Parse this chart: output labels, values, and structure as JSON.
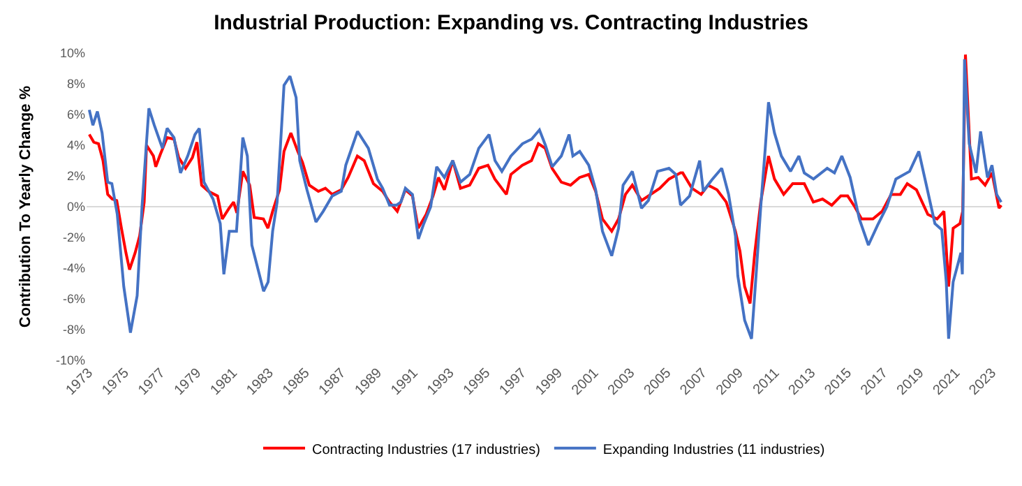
{
  "chart_data": {
    "type": "line",
    "title": "Industrial Production: Expanding vs. Contracting Industries",
    "ylabel": "Contribution To Yearly Change %",
    "xlim": [
      1972.9,
      2023.6
    ],
    "xticks": [
      1973,
      1975,
      1977,
      1979,
      1981,
      1983,
      1985,
      1987,
      1989,
      1991,
      1993,
      1995,
      1997,
      1999,
      2001,
      2003,
      2005,
      2007,
      2009,
      2011,
      2013,
      2015,
      2017,
      2019,
      2021,
      2023
    ],
    "ylim": [
      -10,
      10
    ],
    "yticks": [
      {
        "value": -10,
        "label": "-10%"
      },
      {
        "value": -8,
        "label": "-8%"
      },
      {
        "value": -6,
        "label": "-6%"
      },
      {
        "value": -4,
        "label": "-4%"
      },
      {
        "value": -2,
        "label": "-2%"
      },
      {
        "value": 0,
        "label": "0%"
      },
      {
        "value": 2,
        "label": "2%"
      },
      {
        "value": 4,
        "label": "4%"
      },
      {
        "value": 6,
        "label": "6%"
      },
      {
        "value": 8,
        "label": "8%"
      },
      {
        "value": 10,
        "label": "10%"
      }
    ],
    "grid": false,
    "ref_lines": [
      {
        "axis": "y",
        "value": 0,
        "color": "#d9d9d9"
      }
    ],
    "legend": "bottom",
    "marker": "none",
    "line_style": "solid",
    "series": [
      {
        "name": "Contracting Industries (17 industries)",
        "color": "#ff0000",
        "x": [
          1973.05,
          1973.3,
          1973.56,
          1973.81,
          1974.07,
          1974.32,
          1974.57,
          1974.83,
          1975.08,
          1975.28,
          1975.59,
          1975.84,
          1976.09,
          1976.22,
          1976.6,
          1976.73,
          1976.98,
          1977.36,
          1977.74,
          1978.0,
          1978.38,
          1978.76,
          1979.01,
          1979.27,
          1979.65,
          1980.15,
          1980.41,
          1980.79,
          1981.04,
          1981.22,
          1981.55,
          1981.93,
          1982.18,
          1982.69,
          1982.94,
          1983.2,
          1983.58,
          1983.83,
          1984.21,
          1984.59,
          1984.85,
          1985.23,
          1985.73,
          1986.12,
          1986.5,
          1987.0,
          1987.38,
          1987.89,
          1988.27,
          1988.78,
          1989.29,
          1989.67,
          1990.1,
          1990.55,
          1990.94,
          1991.26,
          1991.7,
          1992.08,
          1992.38,
          1992.71,
          1993.17,
          1993.6,
          1994.11,
          1994.61,
          1995.12,
          1995.5,
          1996.14,
          1996.39,
          1997.02,
          1997.53,
          1997.91,
          1998.29,
          1998.67,
          1999.18,
          1999.69,
          2000.19,
          2000.7,
          2001.08,
          2001.46,
          2001.97,
          2002.35,
          2002.73,
          2003.11,
          2003.62,
          2004.13,
          2004.63,
          2005.14,
          2005.78,
          2005.9,
          2006.41,
          2006.92,
          2007.3,
          2007.8,
          2008.31,
          2008.82,
          2009.07,
          2009.33,
          2009.63,
          2009.89,
          2010.22,
          2010.65,
          2010.98,
          2011.49,
          2011.99,
          2012.63,
          2013.13,
          2013.64,
          2014.15,
          2014.65,
          2015.03,
          2015.42,
          2015.8,
          2016.43,
          2016.94,
          2017.44,
          2017.95,
          2018.33,
          2018.84,
          2019.47,
          2019.98,
          2020.36,
          2020.62,
          2020.87,
          2021.25,
          2021.4,
          2021.55,
          2021.88,
          2022.26,
          2022.64,
          2023.02,
          2023.41,
          2023.53
        ],
        "values": [
          4.7,
          4.2,
          4.1,
          3.0,
          0.8,
          0.5,
          0.4,
          -1.4,
          -3.0,
          -4.1,
          -3.0,
          -1.9,
          0.3,
          4.0,
          3.3,
          2.6,
          3.4,
          4.5,
          4.4,
          3.2,
          2.5,
          3.2,
          4.2,
          1.4,
          1.0,
          0.7,
          -0.8,
          -0.1,
          0.3,
          -0.4,
          2.3,
          1.4,
          -0.7,
          -0.8,
          -1.4,
          -0.3,
          1.1,
          3.6,
          4.8,
          3.6,
          2.9,
          1.4,
          1.0,
          1.2,
          0.8,
          1.1,
          1.9,
          3.3,
          3.0,
          1.5,
          1.0,
          0.3,
          -0.3,
          1.1,
          0.7,
          -1.4,
          -0.5,
          0.7,
          1.9,
          1.1,
          3.0,
          1.2,
          1.4,
          2.5,
          2.7,
          1.8,
          0.8,
          2.1,
          2.7,
          3.0,
          4.1,
          3.8,
          2.5,
          1.6,
          1.4,
          1.9,
          2.1,
          1.0,
          -0.8,
          -1.6,
          -0.8,
          0.8,
          1.4,
          0.4,
          0.8,
          1.2,
          1.8,
          2.2,
          2.2,
          1.2,
          0.8,
          1.4,
          1.1,
          0.3,
          -1.6,
          -2.9,
          -5.2,
          -6.3,
          -3.0,
          0.3,
          3.3,
          1.8,
          0.8,
          1.5,
          1.5,
          0.3,
          0.5,
          0.1,
          0.7,
          0.7,
          0,
          -0.8,
          -0.8,
          -0.3,
          0.8,
          0.8,
          1.5,
          1.1,
          -0.5,
          -0.8,
          -0.3,
          -5.2,
          -1.4,
          -1.1,
          -0.3,
          9.9,
          1.8,
          1.9,
          1.4,
          2.2,
          -0.1,
          0.1
        ]
      },
      {
        "name": "Expanding Industries (11 industries)",
        "color": "#4472c4",
        "x": [
          1973.05,
          1973.25,
          1973.5,
          1973.76,
          1974.07,
          1974.3,
          1974.6,
          1974.96,
          1975.33,
          1975.7,
          1975.97,
          1976.35,
          1976.65,
          1977.1,
          1977.36,
          1977.74,
          1978.1,
          1978.5,
          1978.9,
          1979.14,
          1979.4,
          1979.9,
          1980.3,
          1980.5,
          1980.8,
          1981.2,
          1981.55,
          1981.8,
          1982.05,
          1982.7,
          1982.95,
          1983.2,
          1983.45,
          1983.83,
          1984.16,
          1984.5,
          1984.7,
          1985.1,
          1985.6,
          1986.0,
          1986.5,
          1987.0,
          1987.25,
          1987.9,
          1988.5,
          1989.0,
          1989.29,
          1989.67,
          1990.05,
          1990.3,
          1990.55,
          1990.94,
          1991.27,
          1991.57,
          1991.95,
          1992.28,
          1992.71,
          1993.17,
          1993.6,
          1994.11,
          1994.61,
          1995.18,
          1995.51,
          1995.89,
          1996.39,
          1997.03,
          1997.54,
          1997.97,
          1998.3,
          1998.68,
          1999.18,
          1999.61,
          1999.82,
          2000.2,
          2000.7,
          2001.08,
          2001.46,
          2001.97,
          2002.35,
          2002.6,
          2003.11,
          2003.62,
          2004.0,
          2004.51,
          2005.14,
          2005.52,
          2005.78,
          2006.28,
          2006.84,
          2007.04,
          2007.55,
          2008.06,
          2008.44,
          2008.82,
          2008.95,
          2009.33,
          2009.71,
          2009.96,
          2010.22,
          2010.47,
          2010.65,
          2010.98,
          2011.36,
          2011.87,
          2012.33,
          2012.63,
          2013.14,
          2013.9,
          2014.3,
          2014.71,
          2015.17,
          2015.68,
          2016.18,
          2016.69,
          2017.2,
          2017.7,
          2018.46,
          2018.97,
          2019.35,
          2019.86,
          2020.24,
          2020.49,
          2020.62,
          2020.87,
          2021.3,
          2021.38,
          2021.5,
          2021.76,
          2022.14,
          2022.39,
          2022.77,
          2023.02,
          2023.28,
          2023.53
        ],
        "values": [
          6.3,
          5.3,
          6.2,
          4.8,
          1.6,
          1.5,
          -0.5,
          -5.2,
          -8.2,
          -5.8,
          0,
          6.4,
          5.3,
          3.8,
          5.1,
          4.5,
          2.2,
          3.3,
          4.7,
          5.1,
          1.6,
          0.5,
          -1.1,
          -4.4,
          -1.6,
          -1.6,
          4.5,
          3.3,
          -2.5,
          -5.5,
          -4.9,
          -1.6,
          0.3,
          7.9,
          8.5,
          7.1,
          3.0,
          1.1,
          -1.0,
          -0.3,
          0.7,
          1.0,
          2.7,
          4.9,
          3.8,
          1.8,
          1.2,
          0.1,
          0.1,
          0.3,
          1.2,
          0.8,
          -2.1,
          -1.1,
          0,
          2.6,
          1.9,
          3.0,
          1.6,
          2.1,
          3.8,
          4.7,
          3.0,
          2.3,
          3.3,
          4.1,
          4.4,
          5.0,
          4.0,
          2.6,
          3.3,
          4.7,
          3.3,
          3.6,
          2.7,
          1.1,
          -1.6,
          -3.2,
          -1.4,
          1.4,
          2.3,
          -0.1,
          0.4,
          2.3,
          2.5,
          2.1,
          0.1,
          0.7,
          3.0,
          1.0,
          1.8,
          2.5,
          0.8,
          -1.9,
          -4.5,
          -7.4,
          -8.6,
          -4.5,
          0,
          3.8,
          6.8,
          4.8,
          3.3,
          2.3,
          3.3,
          2.2,
          1.8,
          2.5,
          2.2,
          3.3,
          1.9,
          -0.8,
          -2.5,
          -1.2,
          0,
          1.8,
          2.3,
          3.6,
          1.6,
          -1.1,
          -1.5,
          -4.9,
          -8.6,
          -4.9,
          -3.0,
          -4.4,
          9.6,
          4.1,
          2.2,
          4.9,
          1.9,
          2.7,
          0.8,
          0.3
        ]
      }
    ]
  }
}
